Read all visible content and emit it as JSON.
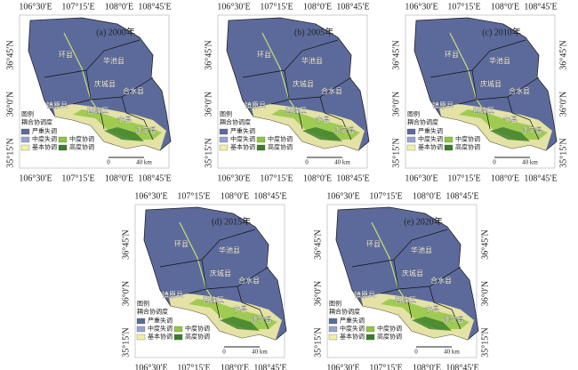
{
  "axes": {
    "longitude": [
      "106°30′E",
      "107°15′E",
      "108°0′E",
      "108°45′E"
    ],
    "latitude": [
      "36°45′N",
      "36°0′N",
      "35°15′N"
    ]
  },
  "legend": {
    "title": "图例",
    "subtitle": "耦合协调度",
    "items": [
      {
        "label": "严重失调",
        "color": "#5c6a9b"
      },
      {
        "label": "中度失调",
        "color": "#9aa3cf"
      },
      {
        "label": "中度协调",
        "color": "#8dc63f"
      },
      {
        "label": "基本协调",
        "color": "#f3efa6"
      },
      {
        "label": "高度协调",
        "color": "#3a7d2a"
      }
    ]
  },
  "scale": {
    "start": "0",
    "end": "40 km"
  },
  "counties": [
    "环县",
    "华池县",
    "庆城县",
    "合水县",
    "镇原县",
    "西峰区",
    "宁县",
    "正宁县"
  ],
  "panels": [
    {
      "label": "(a) 2000年"
    },
    {
      "label": "(b) 2005年"
    },
    {
      "label": "(c) 2010年"
    },
    {
      "label": "(d) 2015年"
    },
    {
      "label": "(e) 2020年"
    }
  ]
}
